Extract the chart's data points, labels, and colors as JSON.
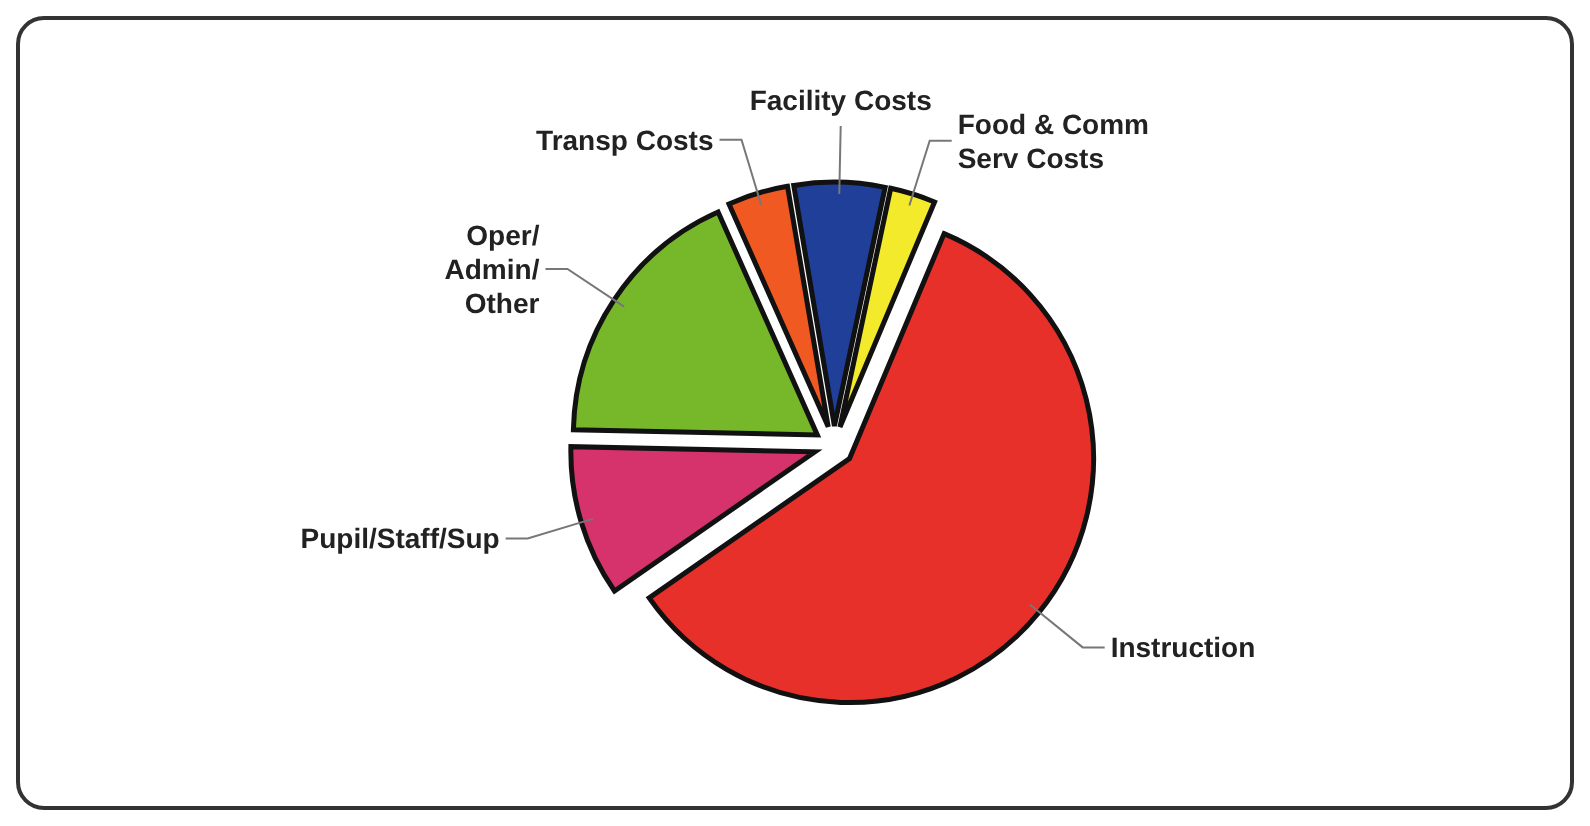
{
  "chart_data": {
    "type": "pie",
    "categories": [
      "Food & Comm\nServ Costs",
      "Instruction",
      "Pupil/Staff/Sup",
      "Oper/\nAdmin/\nOther",
      "Transp Costs",
      "Facility Costs"
    ],
    "values": [
      3,
      59,
      10,
      18,
      4,
      6
    ],
    "colors": [
      "#f2ea2a",
      "#e8302a",
      "#d6336c",
      "#77b82a",
      "#f05a22",
      "#1f3f99"
    ],
    "legend": false
  }
}
